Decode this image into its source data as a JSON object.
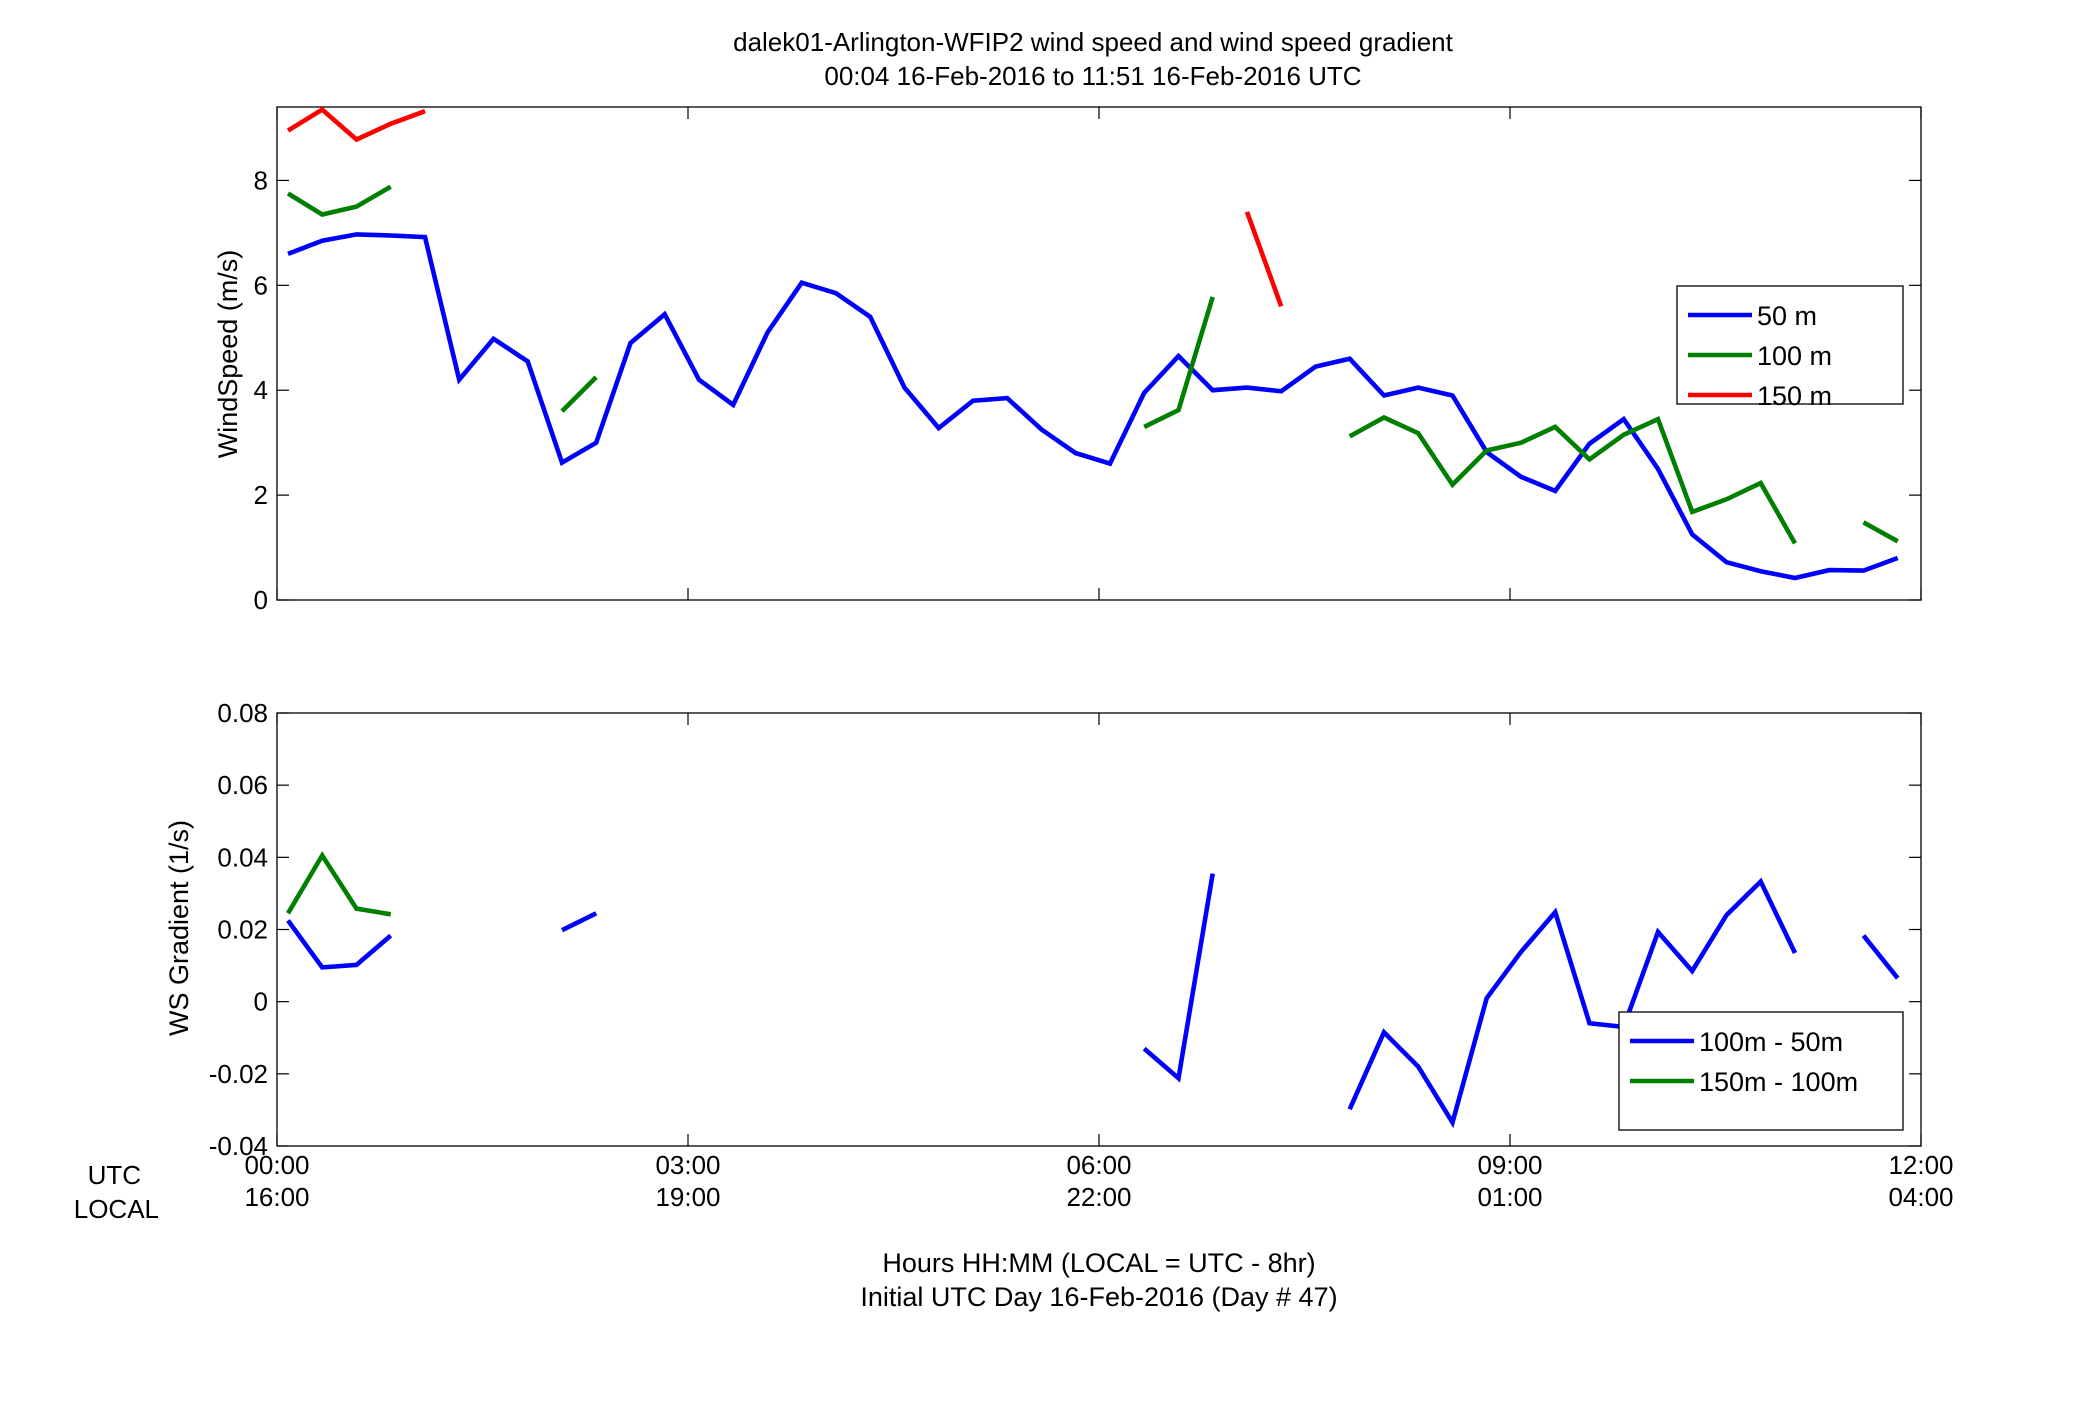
{
  "figure": {
    "title_line1": "dalek01-Arlington-WFIP2  wind speed and wind speed gradient",
    "title_line2": "00:04 16-Feb-2016 to 11:51 16-Feb-2016  UTC",
    "row_label_utc": "UTC",
    "row_label_local": "LOCAL",
    "xlabel_line1": "Hours HH:MM  (LOCAL = UTC - 8hr)",
    "xlabel_line2": "Initial UTC Day 16-Feb-2016 (Day # 47)",
    "x_ticks_utc": [
      "00:00",
      "03:00",
      "06:00",
      "09:00",
      "12:00"
    ],
    "x_ticks_local": [
      "16:00",
      "19:00",
      "22:00",
      "01:00",
      "04:00"
    ]
  },
  "chart_data": [
    {
      "type": "line",
      "ylabel": "WindSpeed (m/s)",
      "xlim": [
        0,
        12
      ],
      "ylim": [
        0,
        9.4
      ],
      "x_unit": "hours UTC",
      "yticks": [
        "0",
        "2",
        "4",
        "6",
        "8"
      ],
      "legend_position": "right",
      "series": [
        {
          "name": "50 m",
          "color": "#0000ff",
          "points": [
            [
              0.08,
              6.6
            ],
            [
              0.33,
              6.85
            ],
            [
              0.58,
              6.97
            ],
            [
              0.83,
              6.95
            ],
            [
              1.08,
              6.92
            ],
            [
              1.33,
              4.2
            ],
            [
              1.58,
              4.98
            ],
            [
              1.83,
              4.55
            ],
            [
              2.08,
              2.62
            ],
            [
              2.33,
              3.0
            ],
            [
              2.58,
              4.9
            ],
            [
              2.83,
              5.45
            ],
            [
              3.08,
              4.2
            ],
            [
              3.33,
              3.72
            ],
            [
              3.58,
              5.1
            ],
            [
              3.83,
              6.05
            ],
            [
              4.08,
              5.85
            ],
            [
              4.33,
              5.4
            ],
            [
              4.58,
              4.05
            ],
            [
              4.83,
              3.28
            ],
            [
              5.08,
              3.8
            ],
            [
              5.33,
              3.85
            ],
            [
              5.58,
              3.25
            ],
            [
              5.83,
              2.8
            ],
            [
              6.08,
              2.6
            ],
            [
              6.33,
              3.95
            ],
            [
              6.58,
              4.65
            ],
            [
              6.83,
              4.0
            ],
            [
              7.08,
              4.05
            ],
            [
              7.33,
              3.98
            ],
            [
              7.58,
              4.45
            ],
            [
              7.83,
              4.6
            ],
            [
              8.08,
              3.9
            ],
            [
              8.33,
              4.05
            ],
            [
              8.58,
              3.9
            ],
            [
              8.83,
              2.82
            ],
            [
              9.08,
              2.35
            ],
            [
              9.33,
              2.08
            ],
            [
              9.58,
              2.98
            ],
            [
              9.83,
              3.45
            ],
            [
              10.08,
              2.5
            ],
            [
              10.33,
              1.25
            ],
            [
              10.58,
              0.72
            ],
            [
              10.83,
              0.55
            ],
            [
              11.08,
              0.42
            ],
            [
              11.33,
              0.57
            ],
            [
              11.58,
              0.56
            ],
            [
              11.83,
              0.8
            ]
          ]
        },
        {
          "name": "100 m",
          "color": "#007f00",
          "segments": [
            [
              [
                0.08,
                7.75
              ],
              [
                0.33,
                7.35
              ],
              [
                0.58,
                7.5
              ],
              [
                0.83,
                7.88
              ]
            ],
            [
              [
                2.08,
                3.6
              ],
              [
                2.33,
                4.25
              ]
            ],
            [
              [
                6.33,
                3.3
              ],
              [
                6.58,
                3.62
              ],
              [
                6.83,
                5.78
              ]
            ],
            [
              [
                7.83,
                3.12
              ],
              [
                8.08,
                3.48
              ],
              [
                8.33,
                3.18
              ],
              [
                8.58,
                2.2
              ],
              [
                8.83,
                2.85
              ],
              [
                9.08,
                3.0
              ],
              [
                9.33,
                3.3
              ],
              [
                9.58,
                2.68
              ],
              [
                9.83,
                3.15
              ],
              [
                10.08,
                3.45
              ],
              [
                10.33,
                1.68
              ],
              [
                10.58,
                1.92
              ],
              [
                10.83,
                2.23
              ],
              [
                11.08,
                1.08
              ]
            ],
            [
              [
                11.58,
                1.48
              ],
              [
                11.83,
                1.12
              ]
            ]
          ]
        },
        {
          "name": "150 m",
          "color": "#ff0000",
          "segments": [
            [
              [
                0.08,
                8.95
              ],
              [
                0.33,
                9.35
              ],
              [
                0.58,
                8.78
              ],
              [
                0.83,
                9.08
              ],
              [
                1.08,
                9.32
              ]
            ],
            [
              [
                7.08,
                7.4
              ],
              [
                7.33,
                5.6
              ]
            ]
          ]
        }
      ]
    },
    {
      "type": "line",
      "ylabel": "WS Gradient (1/s)",
      "xlim": [
        0,
        12
      ],
      "ylim": [
        -0.04,
        0.08
      ],
      "x_unit": "hours UTC",
      "yticks": [
        "-0.04",
        "-0.02",
        "0",
        "0.02",
        "0.04",
        "0.06",
        "0.08"
      ],
      "legend_position": "bottom-right",
      "series": [
        {
          "name": "100m - 50m",
          "color": "#0000ff",
          "segments": [
            [
              [
                0.08,
                0.0225
              ],
              [
                0.33,
                0.0095
              ],
              [
                0.58,
                0.0102
              ],
              [
                0.83,
                0.0183
              ]
            ],
            [
              [
                2.08,
                0.0198
              ],
              [
                2.33,
                0.0245
              ]
            ],
            [
              [
                6.33,
                -0.013
              ],
              [
                6.58,
                -0.0212
              ],
              [
                6.83,
                0.0355
              ]
            ],
            [
              [
                7.83,
                -0.0298
              ],
              [
                8.08,
                -0.0085
              ],
              [
                8.33,
                -0.018
              ],
              [
                8.58,
                -0.0335
              ],
              [
                8.83,
                0.001
              ],
              [
                9.08,
                0.0138
              ],
              [
                9.33,
                0.0248
              ],
              [
                9.58,
                -0.006
              ],
              [
                9.83,
                -0.007
              ],
              [
                10.08,
                0.0193
              ],
              [
                10.33,
                0.0085
              ],
              [
                10.58,
                0.024
              ],
              [
                10.83,
                0.0333
              ],
              [
                11.08,
                0.0135
              ]
            ],
            [
              [
                11.58,
                0.0183
              ],
              [
                11.83,
                0.0065
              ]
            ]
          ]
        },
        {
          "name": "150m - 100m",
          "color": "#007f00",
          "segments": [
            [
              [
                0.08,
                0.0245
              ],
              [
                0.33,
                0.0405
              ],
              [
                0.58,
                0.0258
              ],
              [
                0.83,
                0.0242
              ]
            ]
          ]
        }
      ]
    }
  ]
}
